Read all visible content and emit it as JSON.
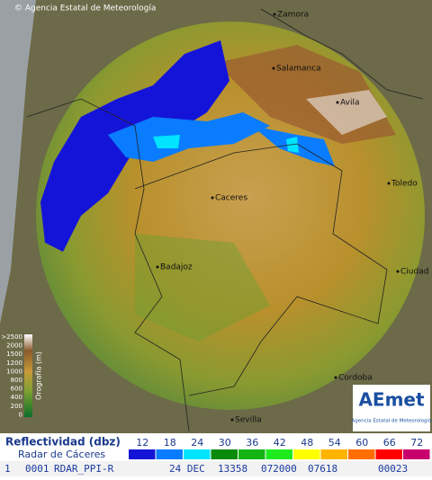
{
  "copyright": "© Agencia Estatal de Meteorología",
  "cities": [
    {
      "label": "Zamora"
    },
    {
      "label": "Salamanca"
    },
    {
      "label": "Avila"
    },
    {
      "label": "Toledo"
    },
    {
      "label": "Caceres"
    },
    {
      "label": "Badajoz"
    },
    {
      "label": "Ciudad"
    },
    {
      "label": "Cordoba"
    },
    {
      "label": "Sevilla"
    }
  ],
  "orography": {
    "title": "Orografía (m)",
    "levels": [
      ">2500",
      "2000",
      "1500",
      "1200",
      "1000",
      "800",
      "600",
      "400",
      "200",
      "0"
    ]
  },
  "logo": {
    "name": "AEmet",
    "subtitle": "Agencia Estatal de Meteorología"
  },
  "legend": {
    "title": "Reflectividad (dbz)",
    "subtitle": "Radar de Cáceres",
    "levels": [
      {
        "value": 12,
        "color": "#1414d8"
      },
      {
        "value": 18,
        "color": "#0a7cff"
      },
      {
        "value": 24,
        "color": "#00e4ff"
      },
      {
        "value": 30,
        "color": "#0a8a0a"
      },
      {
        "value": 36,
        "color": "#14b414"
      },
      {
        "value": 42,
        "color": "#1eeb1e"
      },
      {
        "value": 48,
        "color": "#ffff00"
      },
      {
        "value": 54,
        "color": "#ffb400"
      },
      {
        "value": 60,
        "color": "#ff6e00"
      },
      {
        "value": 66,
        "color": "#ff0000"
      },
      {
        "value": 72,
        "color": "#c8006e"
      }
    ]
  },
  "status": {
    "items": [
      "1",
      "0001",
      "RDAR_PPI-R",
      "24 DEC",
      "13358",
      "072000",
      "07618",
      "00023"
    ]
  }
}
